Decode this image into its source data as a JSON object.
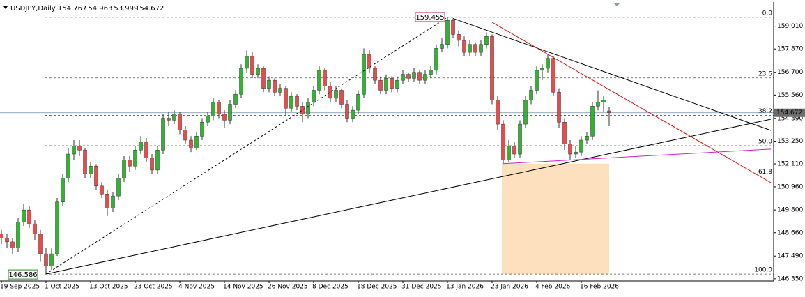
{
  "chart_data": {
    "type": "candlestick",
    "title": "USDJPY,Daily",
    "bull_color": "#2fb52f",
    "bear_color": "#f04848",
    "categories": [
      "19 Sep 2025",
      null,
      null,
      null,
      null,
      null,
      null,
      null,
      "1 Oct 2025",
      null,
      null,
      null,
      null,
      null,
      null,
      null,
      "13 Oct 2025",
      null,
      null,
      null,
      null,
      null,
      null,
      null,
      "23 Oct 2025",
      null,
      null,
      null,
      null,
      null,
      null,
      null,
      "4 Nov 2025",
      null,
      null,
      null,
      null,
      null,
      null,
      null,
      "14 Nov 2025",
      null,
      null,
      null,
      null,
      null,
      null,
      null,
      "26 Nov 2025",
      null,
      null,
      null,
      null,
      null,
      null,
      null,
      "8 Dec 2025",
      null,
      null,
      null,
      null,
      null,
      null,
      null,
      "18 Dec 2025",
      null,
      null,
      null,
      null,
      null,
      null,
      null,
      "31 Dec 2025",
      null,
      null,
      null,
      null,
      null,
      null,
      null,
      "13 Jan 2026",
      null,
      null,
      null,
      null,
      null,
      null,
      null,
      "23 Jan 2026",
      null,
      null,
      null,
      null,
      null,
      null,
      null,
      "4 Feb 2026",
      null,
      null,
      null,
      null,
      null,
      null,
      null,
      "16 Feb 2026",
      null,
      null,
      null,
      null,
      null
    ],
    "ohlc": [
      [
        148.6,
        148.8,
        148.1,
        148.4
      ],
      [
        148.4,
        148.6,
        147.9,
        148.2
      ],
      [
        148.2,
        148.4,
        147.6,
        147.9
      ],
      [
        147.9,
        149.4,
        147.7,
        149.2
      ],
      [
        149.2,
        150.1,
        149.0,
        149.8
      ],
      [
        149.8,
        150.0,
        148.9,
        149.1
      ],
      [
        149.1,
        149.3,
        148.3,
        148.6
      ],
      [
        148.6,
        148.8,
        147.2,
        147.6
      ],
      [
        147.6,
        147.9,
        146.586,
        147.0
      ],
      [
        147.0,
        147.9,
        146.8,
        147.6
      ],
      [
        147.6,
        150.4,
        147.5,
        150.2
      ],
      [
        150.2,
        151.6,
        150.0,
        151.4
      ],
      [
        151.4,
        152.9,
        151.2,
        152.6
      ],
      [
        152.6,
        153.3,
        152.3,
        153.0
      ],
      [
        153.0,
        153.3,
        152.5,
        152.8
      ],
      [
        152.8,
        152.9,
        151.4,
        151.6
      ],
      [
        151.6,
        152.2,
        151.4,
        152.0
      ],
      [
        152.0,
        152.1,
        150.8,
        151.0
      ],
      [
        151.0,
        151.2,
        150.4,
        150.6
      ],
      [
        150.6,
        150.8,
        149.5,
        149.9
      ],
      [
        149.9,
        150.7,
        149.7,
        150.5
      ],
      [
        150.5,
        151.6,
        150.3,
        151.4
      ],
      [
        151.4,
        152.5,
        151.2,
        152.3
      ],
      [
        152.3,
        152.5,
        151.7,
        152.0
      ],
      [
        152.0,
        153.0,
        151.8,
        152.8
      ],
      [
        152.8,
        153.5,
        152.6,
        153.2
      ],
      [
        153.2,
        153.4,
        152.2,
        152.4
      ],
      [
        152.4,
        152.6,
        151.6,
        151.8
      ],
      [
        151.8,
        153.0,
        151.6,
        152.8
      ],
      [
        152.8,
        154.6,
        152.6,
        154.4
      ],
      [
        154.4,
        154.7,
        154.0,
        154.3
      ],
      [
        154.3,
        154.8,
        154.1,
        154.6
      ],
      [
        154.6,
        154.7,
        153.6,
        153.8
      ],
      [
        153.8,
        154.0,
        153.1,
        153.3
      ],
      [
        153.3,
        153.5,
        152.7,
        152.9
      ],
      [
        152.9,
        153.7,
        152.8,
        153.5
      ],
      [
        153.5,
        154.4,
        153.3,
        154.2
      ],
      [
        154.2,
        154.7,
        154.0,
        154.5
      ],
      [
        154.5,
        155.4,
        154.3,
        155.2
      ],
      [
        155.2,
        155.3,
        154.4,
        154.6
      ],
      [
        154.6,
        154.8,
        153.9,
        154.3
      ],
      [
        154.3,
        155.3,
        154.1,
        155.1
      ],
      [
        155.1,
        155.8,
        154.9,
        155.6
      ],
      [
        155.6,
        157.1,
        155.4,
        156.9
      ],
      [
        156.9,
        157.8,
        156.7,
        157.5
      ],
      [
        157.5,
        157.7,
        156.4,
        156.6
      ],
      [
        156.6,
        157.1,
        156.4,
        156.9
      ],
      [
        156.9,
        157.0,
        155.7,
        155.9
      ],
      [
        155.9,
        156.5,
        155.7,
        156.3
      ],
      [
        156.3,
        156.4,
        155.5,
        155.7
      ],
      [
        155.7,
        156.1,
        155.5,
        155.9
      ],
      [
        155.9,
        156.0,
        154.5,
        154.9
      ],
      [
        154.9,
        155.7,
        154.7,
        155.5
      ],
      [
        155.5,
        155.6,
        154.8,
        155.0
      ],
      [
        155.0,
        155.2,
        154.2,
        154.6
      ],
      [
        154.6,
        155.4,
        154.4,
        155.2
      ],
      [
        155.2,
        156.0,
        155.0,
        155.8
      ],
      [
        155.8,
        157.0,
        155.6,
        156.8
      ],
      [
        156.8,
        156.9,
        155.8,
        156.0
      ],
      [
        156.0,
        156.2,
        155.2,
        155.4
      ],
      [
        155.4,
        156.0,
        155.2,
        155.8
      ],
      [
        155.8,
        155.9,
        154.9,
        155.1
      ],
      [
        155.1,
        155.3,
        154.2,
        154.4
      ],
      [
        154.4,
        155.0,
        154.2,
        154.8
      ],
      [
        154.8,
        155.8,
        154.6,
        155.6
      ],
      [
        155.6,
        157.9,
        155.4,
        157.6
      ],
      [
        157.6,
        157.8,
        156.7,
        156.9
      ],
      [
        156.9,
        157.0,
        156.1,
        156.3
      ],
      [
        156.3,
        156.5,
        155.6,
        155.8
      ],
      [
        155.8,
        156.6,
        155.6,
        156.4
      ],
      [
        156.4,
        156.5,
        155.7,
        155.9
      ],
      [
        155.9,
        156.5,
        155.7,
        156.3
      ],
      [
        156.3,
        156.8,
        156.1,
        156.6
      ],
      [
        156.6,
        156.7,
        156.2,
        156.4
      ],
      [
        156.4,
        156.9,
        156.2,
        156.7
      ],
      [
        156.7,
        156.8,
        156.1,
        156.3
      ],
      [
        156.3,
        156.8,
        156.1,
        156.6
      ],
      [
        156.6,
        157.0,
        156.4,
        156.8
      ],
      [
        156.8,
        158.1,
        156.6,
        157.9
      ],
      [
        157.9,
        158.4,
        157.7,
        158.1
      ],
      [
        158.1,
        159.455,
        157.9,
        159.3
      ],
      [
        159.3,
        159.4,
        158.4,
        158.6
      ],
      [
        158.6,
        158.8,
        158.0,
        158.3
      ],
      [
        158.3,
        158.5,
        157.5,
        157.7
      ],
      [
        157.7,
        158.3,
        157.5,
        158.1
      ],
      [
        158.1,
        158.2,
        157.5,
        157.7
      ],
      [
        157.7,
        158.3,
        157.5,
        158.1
      ],
      [
        158.1,
        158.7,
        157.9,
        158.5
      ],
      [
        158.5,
        158.6,
        155.1,
        155.3
      ],
      [
        155.3,
        155.5,
        153.8,
        154.1
      ],
      [
        154.1,
        154.3,
        152.12,
        152.3
      ],
      [
        152.3,
        153.3,
        152.2,
        153.0
      ],
      [
        153.0,
        153.2,
        152.4,
        152.6
      ],
      [
        152.6,
        154.3,
        152.4,
        154.1
      ],
      [
        154.1,
        155.5,
        153.9,
        155.3
      ],
      [
        155.3,
        156.0,
        155.1,
        155.8
      ],
      [
        155.8,
        157.0,
        155.6,
        156.8
      ],
      [
        156.8,
        157.1,
        156.3,
        156.9
      ],
      [
        156.9,
        157.6,
        156.7,
        157.4
      ],
      [
        157.4,
        157.5,
        155.5,
        155.7
      ],
      [
        155.7,
        155.9,
        153.9,
        154.2
      ],
      [
        154.2,
        154.4,
        152.8,
        153.1
      ],
      [
        153.1,
        153.3,
        152.3,
        152.6
      ],
      [
        152.6,
        153.0,
        152.4,
        152.7
      ],
      [
        152.7,
        153.5,
        152.5,
        153.3
      ],
      [
        153.3,
        153.7,
        153.1,
        153.5
      ],
      [
        153.5,
        155.2,
        153.3,
        155.0
      ],
      [
        155.0,
        155.8,
        154.8,
        155.2
      ],
      [
        155.2,
        155.5,
        154.7,
        155.3
      ],
      [
        154.767,
        154.963,
        153.999,
        154.672
      ]
    ],
    "ylim": [
      146.24,
      160.22
    ],
    "yticks": [
      {
        "value": 159.01,
        "label": "159.010"
      },
      {
        "value": 157.87,
        "label": "157.870"
      },
      {
        "value": 156.7,
        "label": "156.700"
      },
      {
        "value": 155.56,
        "label": "155.560"
      },
      {
        "value": 154.39,
        "label": "154.390"
      },
      {
        "value": 153.25,
        "label": "153.250"
      },
      {
        "value": 152.11,
        "label": "152.110"
      },
      {
        "value": 150.96,
        "label": "150.960"
      },
      {
        "value": 149.8,
        "label": "149.800"
      },
      {
        "value": 148.66,
        "label": "148.660"
      },
      {
        "value": 147.49,
        "label": "147.490"
      },
      {
        "value": 146.35,
        "label": "146.350"
      }
    ],
    "fib_levels": [
      {
        "value": 0,
        "label": "0.0"
      },
      {
        "value": 23.6,
        "label": "23.6"
      },
      {
        "value": 38.2,
        "label": "38.2"
      },
      {
        "value": 50,
        "label": "50.0"
      },
      {
        "value": 61.8,
        "label": "61.8"
      },
      {
        "value": 100,
        "label": "100.0"
      }
    ],
    "trendlines": [
      {
        "color": "#000000",
        "dashed": true,
        "points": [
          [
            8,
            146.586
          ],
          [
            80,
            159.455
          ]
        ]
      },
      {
        "color": "#000000",
        "dashed": false,
        "points": [
          [
            8,
            146.586
          ],
          [
            138,
            154.35
          ]
        ]
      },
      {
        "color": "#000000",
        "dashed": false,
        "points": [
          [
            81,
            159.4
          ],
          [
            138,
            153.79
          ]
        ]
      },
      {
        "color": "#e01010",
        "dashed": false,
        "points": [
          [
            88,
            159.21
          ],
          [
            138,
            151.17
          ]
        ]
      },
      {
        "color": "#d020d0",
        "dashed": false,
        "points": [
          [
            90,
            152.12
          ],
          [
            138,
            152.85
          ]
        ]
      }
    ],
    "zone": {
      "color": "#fde0bd",
      "points": [
        [
          90,
          152.12
        ],
        [
          109,
          146.586
        ]
      ]
    },
    "price_line_color": "#6f8fa8"
  }
}
